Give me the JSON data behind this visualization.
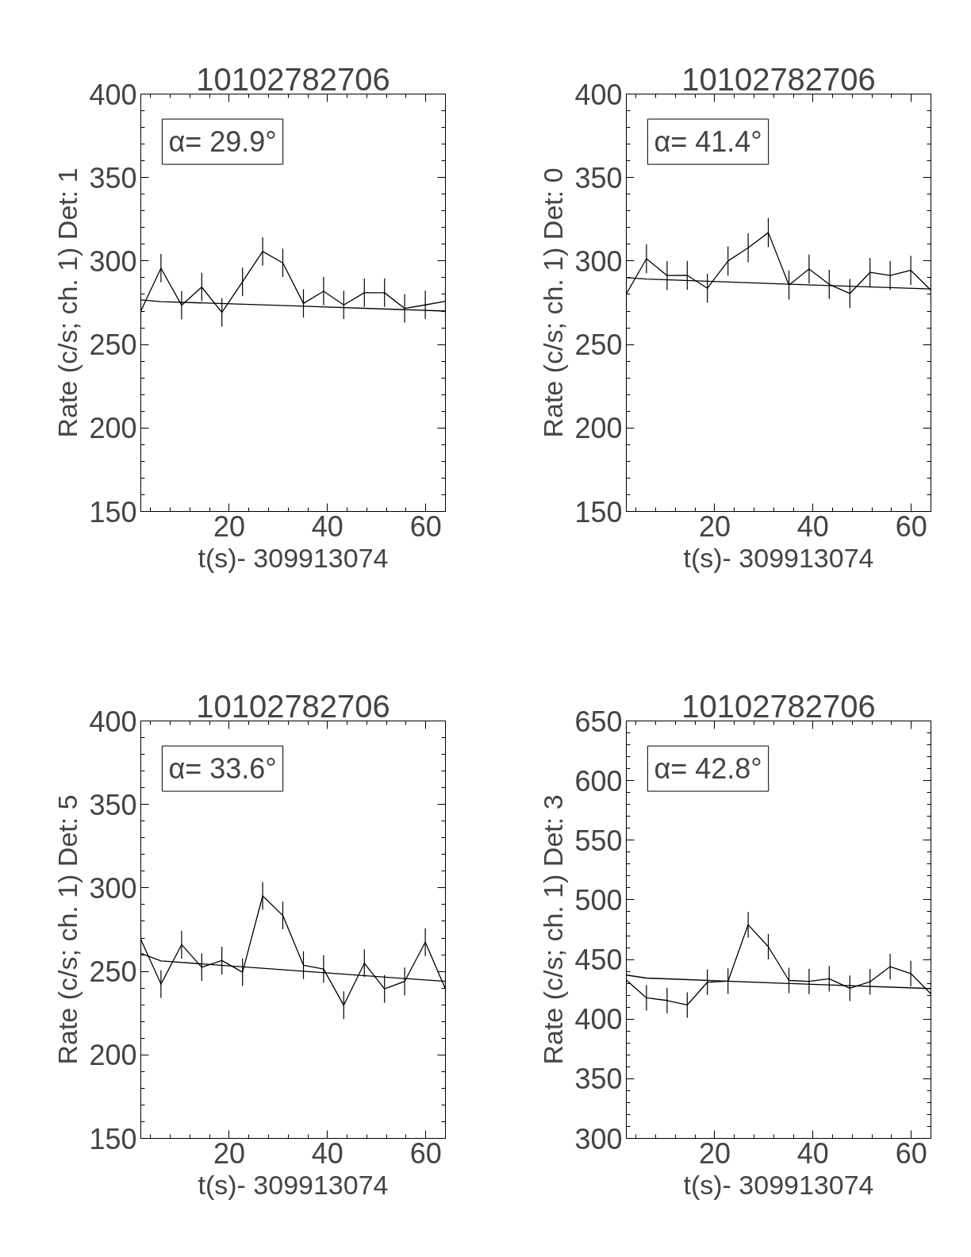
{
  "chart_data": [
    {
      "type": "line",
      "title": "10102782706",
      "xlabel": "t(s)- 309913074",
      "ylabel": "Rate (c/s; ch. 1) Det: 1",
      "xlim": [
        2,
        64
      ],
      "ylim": [
        150,
        400
      ],
      "xticks": [
        20,
        40,
        60
      ],
      "yticks": [
        150,
        200,
        250,
        300,
        350,
        400
      ],
      "annotations": [
        "α= 29.9°"
      ],
      "x": [
        2.0,
        6.1,
        10.3,
        14.4,
        18.5,
        22.7,
        26.8,
        30.9,
        35.1,
        39.2,
        43.3,
        47.5,
        51.6,
        55.7,
        59.9,
        64.0
      ],
      "series": [
        {
          "color": "#000000",
          "values": [
            270,
            295.7,
            273.5,
            284.4,
            269.2,
            287.5,
            305.7,
            298.9,
            274.6,
            281.9,
            273.7,
            281,
            281,
            271.6,
            273.7,
            275.9
          ],
          "errors": [
            8.5,
            8.5,
            8.5,
            8.5,
            8.5,
            8.5,
            8.5,
            8.5,
            8.5,
            8.5,
            8.5,
            8.5,
            8.5,
            8.5,
            8.5,
            8.5
          ]
        },
        {
          "type": "line",
          "color": "#000000",
          "x": [
            2,
            6.1,
            34,
            64
          ],
          "values": [
            276.7,
            275.7,
            273,
            270
          ]
        }
      ]
    },
    {
      "type": "line",
      "title": "10102782706",
      "xlabel": "t(s)- 309913074",
      "ylabel": "Rate (c/s; ch. 1) Det: 0",
      "xlim": [
        2,
        64
      ],
      "ylim": [
        150,
        400
      ],
      "xticks": [
        20,
        40,
        60
      ],
      "yticks": [
        150,
        200,
        250,
        300,
        350,
        400
      ],
      "annotations": [
        "α= 41.4°"
      ],
      "x": [
        2.0,
        6.1,
        10.3,
        14.4,
        18.5,
        22.7,
        26.8,
        30.9,
        35.1,
        39.2,
        43.3,
        47.5,
        51.6,
        55.7,
        59.9,
        64.0
      ],
      "series": [
        {
          "color": "#000000",
          "values": [
            280.3,
            301.4,
            291.3,
            291.4,
            283.7,
            300,
            307.9,
            317,
            285.6,
            295.2,
            286,
            280.5,
            293.2,
            291.3,
            294.4,
            282.5
          ],
          "errors": [
            8.7,
            8.7,
            8.7,
            8.7,
            8.7,
            8.7,
            8.7,
            8.7,
            8.7,
            8.7,
            8.7,
            8.7,
            8.7,
            8.7,
            8.7,
            8.7
          ]
        },
        {
          "type": "line",
          "color": "#000000",
          "x": [
            2,
            6.1,
            34,
            64
          ],
          "values": [
            290,
            289.2,
            286.2,
            283.3
          ]
        }
      ]
    },
    {
      "type": "line",
      "title": "10102782706",
      "xlabel": "t(s)- 309913074",
      "ylabel": "Rate (c/s; ch. 1) Det: 5",
      "xlim": [
        2,
        64
      ],
      "ylim": [
        150,
        400
      ],
      "xticks": [
        20,
        40,
        60
      ],
      "yticks": [
        150,
        200,
        250,
        300,
        350,
        400
      ],
      "annotations": [
        "α= 33.6°"
      ],
      "x": [
        2.0,
        6.1,
        10.3,
        14.4,
        18.5,
        22.7,
        26.8,
        30.9,
        35.1,
        39.2,
        43.3,
        47.5,
        51.6,
        55.7,
        59.9,
        64.0
      ],
      "series": [
        {
          "color": "#000000",
          "values": [
            269.2,
            242.4,
            266,
            252.5,
            256.5,
            249.5,
            295.2,
            283.5,
            253.7,
            251.4,
            229.7,
            254.9,
            239.5,
            244,
            267.5,
            239.5
          ],
          "errors": [
            8.3,
            8.3,
            8.3,
            8.3,
            8.3,
            8.3,
            8.3,
            8.3,
            8.3,
            8.3,
            8.3,
            8.3,
            8.3,
            8.3,
            8.3,
            8.3
          ]
        },
        {
          "type": "line",
          "color": "#000000",
          "x": [
            2,
            6.1,
            34,
            64
          ],
          "values": [
            260.8,
            256.3,
            250.3,
            244
          ]
        }
      ]
    },
    {
      "type": "line",
      "title": "10102782706",
      "xlabel": "t(s)- 309913074",
      "ylabel": "Rate (c/s; ch. 1) Det: 3",
      "xlim": [
        2,
        64
      ],
      "ylim": [
        300,
        650
      ],
      "xticks": [
        20,
        40,
        60
      ],
      "yticks": [
        300,
        350,
        400,
        450,
        500,
        550,
        600,
        650
      ],
      "annotations": [
        "α= 42.8°"
      ],
      "x": [
        2.0,
        6.1,
        10.3,
        14.4,
        18.5,
        22.7,
        26.8,
        30.9,
        35.1,
        39.2,
        43.3,
        47.5,
        51.6,
        55.7,
        59.9,
        64.0
      ],
      "series": [
        {
          "color": "#000000",
          "values": [
            432.7,
            417.8,
            415.6,
            411.8,
            430.9,
            431.8,
            479.1,
            460.7,
            432.4,
            431.6,
            433.8,
            425.8,
            431.3,
            444,
            438.2,
            421.1
          ],
          "errors": [
            10.7,
            10.7,
            10.7,
            10.7,
            10.7,
            10.7,
            10.7,
            10.7,
            10.7,
            10.7,
            10.7,
            10.7,
            10.7,
            10.7,
            10.7,
            10.7
          ]
        },
        {
          "type": "line",
          "color": "#000000",
          "x": [
            2,
            6.1,
            34,
            64
          ],
          "values": [
            436.9,
            434.4,
            430,
            425.6
          ]
        }
      ]
    }
  ]
}
